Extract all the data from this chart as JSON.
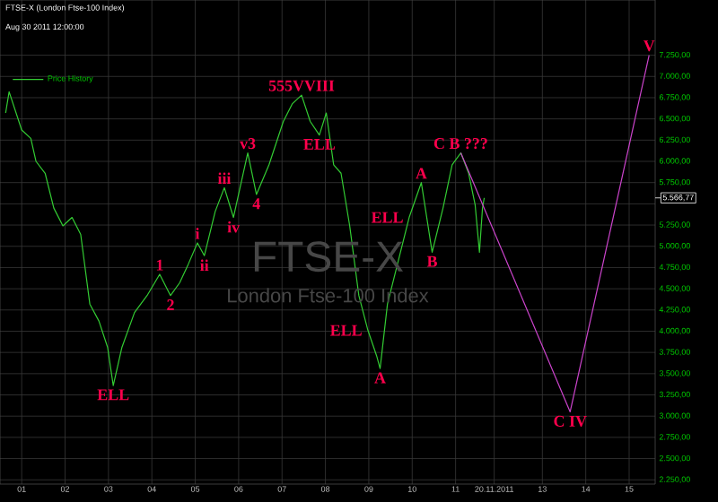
{
  "chart_data": {
    "type": "line",
    "title": "FTSE-X (London Ftse-100 Index)",
    "subtitle": "Aug 30 2011 12:00:00",
    "xlim": [
      2000.5,
      2015.6
    ],
    "ylim": [
      2200,
      7900
    ],
    "xticks": [
      {
        "value": 2001,
        "label": "01"
      },
      {
        "value": 2002,
        "label": "02"
      },
      {
        "value": 2003,
        "label": "03"
      },
      {
        "value": 2004,
        "label": "04"
      },
      {
        "value": 2005,
        "label": "05"
      },
      {
        "value": 2006,
        "label": "06"
      },
      {
        "value": 2007,
        "label": "07"
      },
      {
        "value": 2008,
        "label": "08"
      },
      {
        "value": 2009,
        "label": "09"
      },
      {
        "value": 2010,
        "label": "10"
      },
      {
        "value": 2011,
        "label": "11"
      },
      {
        "value": 2011.89,
        "label": "20.11.2011"
      },
      {
        "value": 2013,
        "label": "13"
      },
      {
        "value": 2014,
        "label": "14"
      },
      {
        "value": 2015,
        "label": "15"
      }
    ],
    "yticks": [
      {
        "value": 2250,
        "label": "2.250,00"
      },
      {
        "value": 2500,
        "label": "2.500,00"
      },
      {
        "value": 2750,
        "label": "2.750,00"
      },
      {
        "value": 3000,
        "label": "3.000,00"
      },
      {
        "value": 3250,
        "label": "3.250,00"
      },
      {
        "value": 3500,
        "label": "3.500,00"
      },
      {
        "value": 3750,
        "label": "3.750,00"
      },
      {
        "value": 4000,
        "label": "4.000,00"
      },
      {
        "value": 4250,
        "label": "4.250,00"
      },
      {
        "value": 4500,
        "label": "4.500,00"
      },
      {
        "value": 4750,
        "label": "4.750,00"
      },
      {
        "value": 5000,
        "label": "5.000,00"
      },
      {
        "value": 5250,
        "label": "5.250,00"
      },
      {
        "value": 5500,
        "label": null
      },
      {
        "value": 5750,
        "label": "5.750,00"
      },
      {
        "value": 6000,
        "label": "6.000,00"
      },
      {
        "value": 6250,
        "label": "6.250,00"
      },
      {
        "value": 6500,
        "label": "6.500,00"
      },
      {
        "value": 6750,
        "label": "6.750,00"
      },
      {
        "value": 7000,
        "label": "7.000,00"
      },
      {
        "value": 7250,
        "label": "7.250,00"
      }
    ],
    "grid": true,
    "legend": "top left",
    "series": [
      {
        "name": "Price History",
        "color": "#33cc33",
        "x": [
          2000.63,
          2000.71,
          2001.0,
          2001.21,
          2001.33,
          2001.54,
          2001.74,
          2001.95,
          2002.16,
          2002.36,
          2002.57,
          2002.78,
          2002.98,
          2003.11,
          2003.31,
          2003.6,
          2003.89,
          2004.18,
          2004.43,
          2004.64,
          2004.84,
          2005.05,
          2005.21,
          2005.46,
          2005.67,
          2005.88,
          2006.21,
          2006.41,
          2006.7,
          2007.03,
          2007.24,
          2007.45,
          2007.65,
          2007.86,
          2008.02,
          2008.19,
          2008.36,
          2008.56,
          2008.77,
          2008.98,
          2009.18,
          2009.26,
          2009.43,
          2009.68,
          2009.93,
          2010.21,
          2010.46,
          2010.71,
          2010.92,
          2011.12,
          2011.3,
          2011.45,
          2011.55,
          2011.62,
          2011.66
        ],
        "values": [
          6570,
          6820,
          6370,
          6270,
          6000,
          5860,
          5450,
          5240,
          5340,
          5140,
          4320,
          4120,
          3810,
          3360,
          3810,
          4220,
          4420,
          4670,
          4420,
          4570,
          4790,
          5040,
          4890,
          5410,
          5690,
          5340,
          6100,
          5610,
          5960,
          6470,
          6680,
          6780,
          6470,
          6310,
          6570,
          5960,
          5860,
          5240,
          4420,
          4010,
          3710,
          3560,
          4320,
          4830,
          5340,
          5750,
          4930,
          5450,
          5960,
          6100,
          5860,
          5490,
          4930,
          5450,
          5570
        ]
      },
      {
        "color": "#cc44cc",
        "x": [
          2011.12,
          2013.64,
          2015.46
        ],
        "values": [
          6100,
          3050,
          7250
        ]
      }
    ],
    "annotations": [
      "FTSE-X",
      "London Ftse-100 Index",
      "5.566,77",
      {
        "text": "ELL",
        "x": 2003.11,
        "y": 3360
      },
      {
        "text": "1",
        "x": 2004.18,
        "y": 4670
      },
      {
        "text": "2",
        "x": 2004.43,
        "y": 4420
      },
      {
        "text": "i",
        "x": 2005.05,
        "y": 5040
      },
      {
        "text": "ii",
        "x": 2005.21,
        "y": 4890
      },
      {
        "text": "iii",
        "x": 2005.67,
        "y": 5690
      },
      {
        "text": "iv",
        "x": 2005.88,
        "y": 5340
      },
      {
        "text": "v3",
        "x": 2006.21,
        "y": 6100
      },
      {
        "text": "4",
        "x": 2006.41,
        "y": 5610
      },
      {
        "text": "555VVIII",
        "x": 2007.45,
        "y": 6780
      },
      {
        "text": "ELL",
        "x": 2007.86,
        "y": 6310
      },
      {
        "text": "A",
        "x": 2009.26,
        "y": 3560
      },
      {
        "text": "ELL",
        "x": 2008.98,
        "y": 4010
      },
      {
        "text": "A",
        "x": 2010.21,
        "y": 5750
      },
      {
        "text": "ELL",
        "x": 2009.93,
        "y": 5340
      },
      {
        "text": "B",
        "x": 2010.46,
        "y": 4930
      },
      {
        "text": "C B ???",
        "x": 2011.12,
        "y": 6100
      },
      {
        "text": "C IV",
        "x": 2013.64,
        "y": 3050
      },
      {
        "text": "V",
        "x": 2015.46,
        "y": 7250
      }
    ]
  }
}
